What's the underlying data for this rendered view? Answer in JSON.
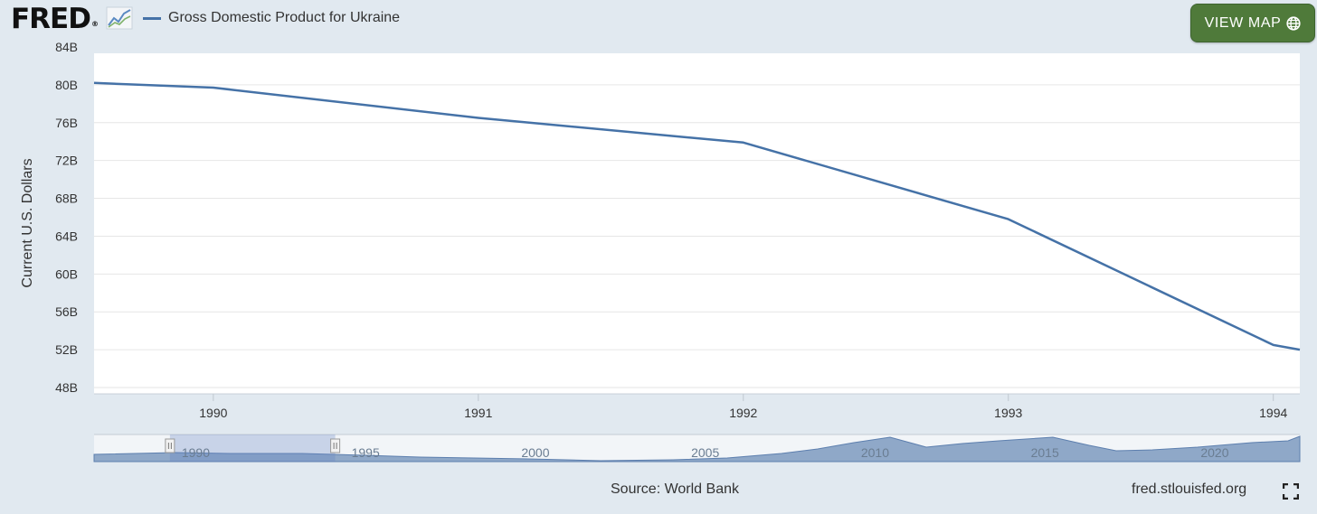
{
  "header": {
    "logo_text": "FRED",
    "logo_mark": "®",
    "logo_icon": "line-chart-icon",
    "view_map_label": "VIEW MAP",
    "view_map_icon": "globe-icon"
  },
  "chart_data": {
    "type": "line",
    "title": "",
    "xlabel": "",
    "ylabel": "Current U.S. Dollars",
    "series": [
      {
        "name": "Gross Domestic Product for Ukraine",
        "color": "#4572a7",
        "x": [
          1989.55,
          1990,
          1991,
          1992,
          1993,
          1994,
          1994.1
        ],
        "values": [
          80.2,
          79.7,
          76.5,
          73.9,
          65.8,
          52.5,
          52.0
        ]
      }
    ],
    "y_ticks": [
      "84B",
      "80B",
      "76B",
      "72B",
      "68B",
      "64B",
      "60B",
      "56B",
      "52B",
      "48B"
    ],
    "y_tick_values": [
      84,
      80,
      76,
      72,
      68,
      64,
      60,
      56,
      52,
      48
    ],
    "ylim": [
      48,
      84
    ],
    "x_ticks": [
      "1990",
      "1991",
      "1992",
      "1993",
      "1994"
    ],
    "x_tick_values": [
      1990,
      1991,
      1992,
      1993,
      1994
    ],
    "xlim": [
      1989.55,
      1994.1
    ],
    "grid": true,
    "legend": "top-left",
    "navigator": {
      "labels": [
        "1990",
        "1995",
        "2000",
        "2005",
        "2010",
        "2015",
        "2020"
      ],
      "label_values": [
        1990,
        1995,
        2000,
        2005,
        2010,
        2015,
        2020
      ],
      "range": [
        1987.5,
        2023
      ],
      "selected": [
        1990,
        1994.6
      ]
    }
  },
  "footer": {
    "source": "Source: World Bank",
    "site": "fred.stlouisfed.org",
    "fullscreen_icon": "fullscreen-icon"
  },
  "colors": {
    "background": "#e1e9f0",
    "series": "#4572a7",
    "view_map_button": "#4f7a3a"
  }
}
